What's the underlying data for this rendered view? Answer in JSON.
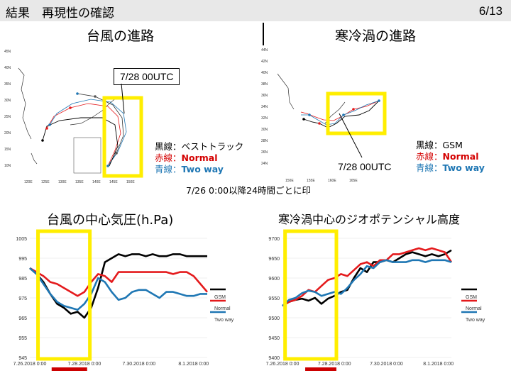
{
  "header": {
    "title": "結果　再現性の確認",
    "page": "6/13"
  },
  "typhoon_track": {
    "title": "台風の進路",
    "callout": "7/28 00UTC",
    "legend": {
      "black": "黒線：ベストトラック",
      "red_prefix": "赤線：",
      "red_value": "Normal",
      "blue_prefix": "青線：",
      "blue_value": "Two way"
    },
    "lat_labels": [
      "45N",
      "40N",
      "35N",
      "30N",
      "25N",
      "20N",
      "15N",
      "10N"
    ],
    "lon_labels": [
      "120E",
      "125E",
      "130E",
      "135E",
      "140E",
      "145E",
      "150E"
    ]
  },
  "cold_vortex_track": {
    "title": "寒冷渦の進路",
    "callout": "7/28 00UTC",
    "legend": {
      "black": "黒線：GSM",
      "red_prefix": "赤線：",
      "red_value": "Normal",
      "blue_prefix": "青線：",
      "blue_value": "Two way"
    },
    "lat_labels": [
      "44N",
      "42N",
      "40N",
      "38N",
      "36N",
      "34N",
      "32N",
      "30N",
      "28N",
      "26N",
      "24N"
    ],
    "lon_labels": [
      "150E",
      "155E",
      "160E",
      "165E"
    ]
  },
  "footnote": "7/26 0:00以降24時間ごとに印",
  "pressure_title": "台風の中心気圧(h.Pa)",
  "height_title": "寒冷渦中心のジオポテンシャル高度",
  "colors": {
    "gsm": "#000000",
    "normal": "#e41a1c",
    "twoway": "#1f77b4",
    "highlight": "#ffee00",
    "underline": "#cc0000"
  },
  "chart_data": [
    {
      "type": "line",
      "title": "台風の中心気圧(h.Pa)",
      "ylim": [
        945,
        1005
      ],
      "yticks": [
        "945",
        "955",
        "965",
        "975",
        "985",
        "995",
        "1005"
      ],
      "xticks": [
        "7.26.2018 0:00",
        "7.28.2018 0:00",
        "7.30.2018 0:00",
        "8.1.2018 0:00"
      ],
      "xmax": 26,
      "series": [
        {
          "name": "GSM",
          "color": "#000000",
          "x": [
            0,
            1,
            2,
            3,
            4,
            5,
            6,
            7,
            8,
            9,
            10,
            11,
            12,
            13,
            14,
            15,
            16,
            17,
            18,
            19,
            20,
            21,
            22,
            23,
            24,
            25,
            26
          ],
          "values": [
            990,
            987,
            983,
            977,
            972,
            970,
            967,
            968,
            965,
            970,
            980,
            993,
            995,
            997,
            996,
            997,
            997,
            996,
            997,
            996,
            996,
            997,
            997,
            996,
            996,
            996,
            996
          ]
        },
        {
          "name": "Normal",
          "color": "#e41a1c",
          "x": [
            0,
            1,
            2,
            3,
            4,
            5,
            6,
            7,
            8,
            9,
            10,
            11,
            12,
            13,
            14,
            15,
            16,
            17,
            18,
            19,
            20,
            21,
            22,
            23,
            24,
            25,
            26
          ],
          "values": [
            990,
            988,
            986,
            983,
            982,
            980,
            978,
            976,
            978,
            983,
            987,
            986,
            983,
            988,
            988,
            988,
            988,
            988,
            988,
            988,
            988,
            987,
            988,
            988,
            986,
            982,
            978
          ]
        },
        {
          "name": "Two way",
          "color": "#1f77b4",
          "x": [
            0,
            1,
            2,
            3,
            4,
            5,
            6,
            7,
            8,
            9,
            10,
            11,
            12,
            13,
            14,
            15,
            16,
            17,
            18,
            19,
            20,
            21,
            22,
            23,
            24,
            25,
            26
          ],
          "values": [
            990,
            987,
            982,
            977,
            973,
            971,
            970,
            969,
            972,
            977,
            985,
            983,
            978,
            974,
            975,
            978,
            979,
            979,
            977,
            975,
            978,
            978,
            977,
            976,
            976,
            977,
            977
          ]
        }
      ]
    },
    {
      "type": "line",
      "title": "寒冷渦中心のジオポテンシャル高度",
      "ylim": [
        9400,
        9700
      ],
      "yticks": [
        "9400",
        "9450",
        "9500",
        "9550",
        "9600",
        "9650",
        "9700"
      ],
      "xticks": [
        "7.26.2018 0:00",
        "7.28.2018 0:00",
        "7.30.2018 0:00",
        "8.1.2018 0:00"
      ],
      "xmax": 26,
      "series": [
        {
          "name": "GSM",
          "color": "#000000",
          "x": [
            0,
            1,
            2,
            3,
            4,
            5,
            6,
            7,
            8,
            9,
            10,
            11,
            12,
            13,
            14,
            15,
            16,
            17,
            18,
            19,
            20,
            21,
            22,
            23,
            24,
            25,
            26
          ],
          "values": [
            9530,
            9540,
            9545,
            9548,
            9543,
            9550,
            9535,
            9548,
            9555,
            9565,
            9570,
            9600,
            9625,
            9615,
            9640,
            9640,
            9645,
            9640,
            9650,
            9660,
            9665,
            9660,
            9655,
            9660,
            9655,
            9660,
            9670
          ]
        },
        {
          "name": "Normal",
          "color": "#e41a1c",
          "x": [
            0,
            1,
            2,
            3,
            4,
            5,
            6,
            7,
            8,
            9,
            10,
            11,
            12,
            13,
            14,
            15,
            16,
            17,
            18,
            19,
            20,
            21,
            22,
            23,
            24,
            25,
            26
          ],
          "values": [
            9530,
            9540,
            9545,
            9555,
            9570,
            9565,
            9580,
            9595,
            9600,
            9610,
            9605,
            9620,
            9635,
            9640,
            9630,
            9645,
            9645,
            9660,
            9660,
            9665,
            9670,
            9675,
            9670,
            9675,
            9670,
            9665,
            9640
          ]
        },
        {
          "name": "Two way",
          "color": "#1f77b4",
          "x": [
            0,
            1,
            2,
            3,
            4,
            5,
            6,
            7,
            8,
            9,
            10,
            11,
            12,
            13,
            14,
            15,
            16,
            17,
            18,
            19,
            20,
            21,
            22,
            23,
            24,
            25,
            26
          ],
          "values": [
            9530,
            9545,
            9550,
            9562,
            9568,
            9565,
            9555,
            9560,
            9565,
            9560,
            9575,
            9595,
            9610,
            9630,
            9625,
            9640,
            9645,
            9640,
            9640,
            9640,
            9645,
            9645,
            9640,
            9645,
            9645,
            9645,
            9640
          ]
        }
      ]
    }
  ]
}
